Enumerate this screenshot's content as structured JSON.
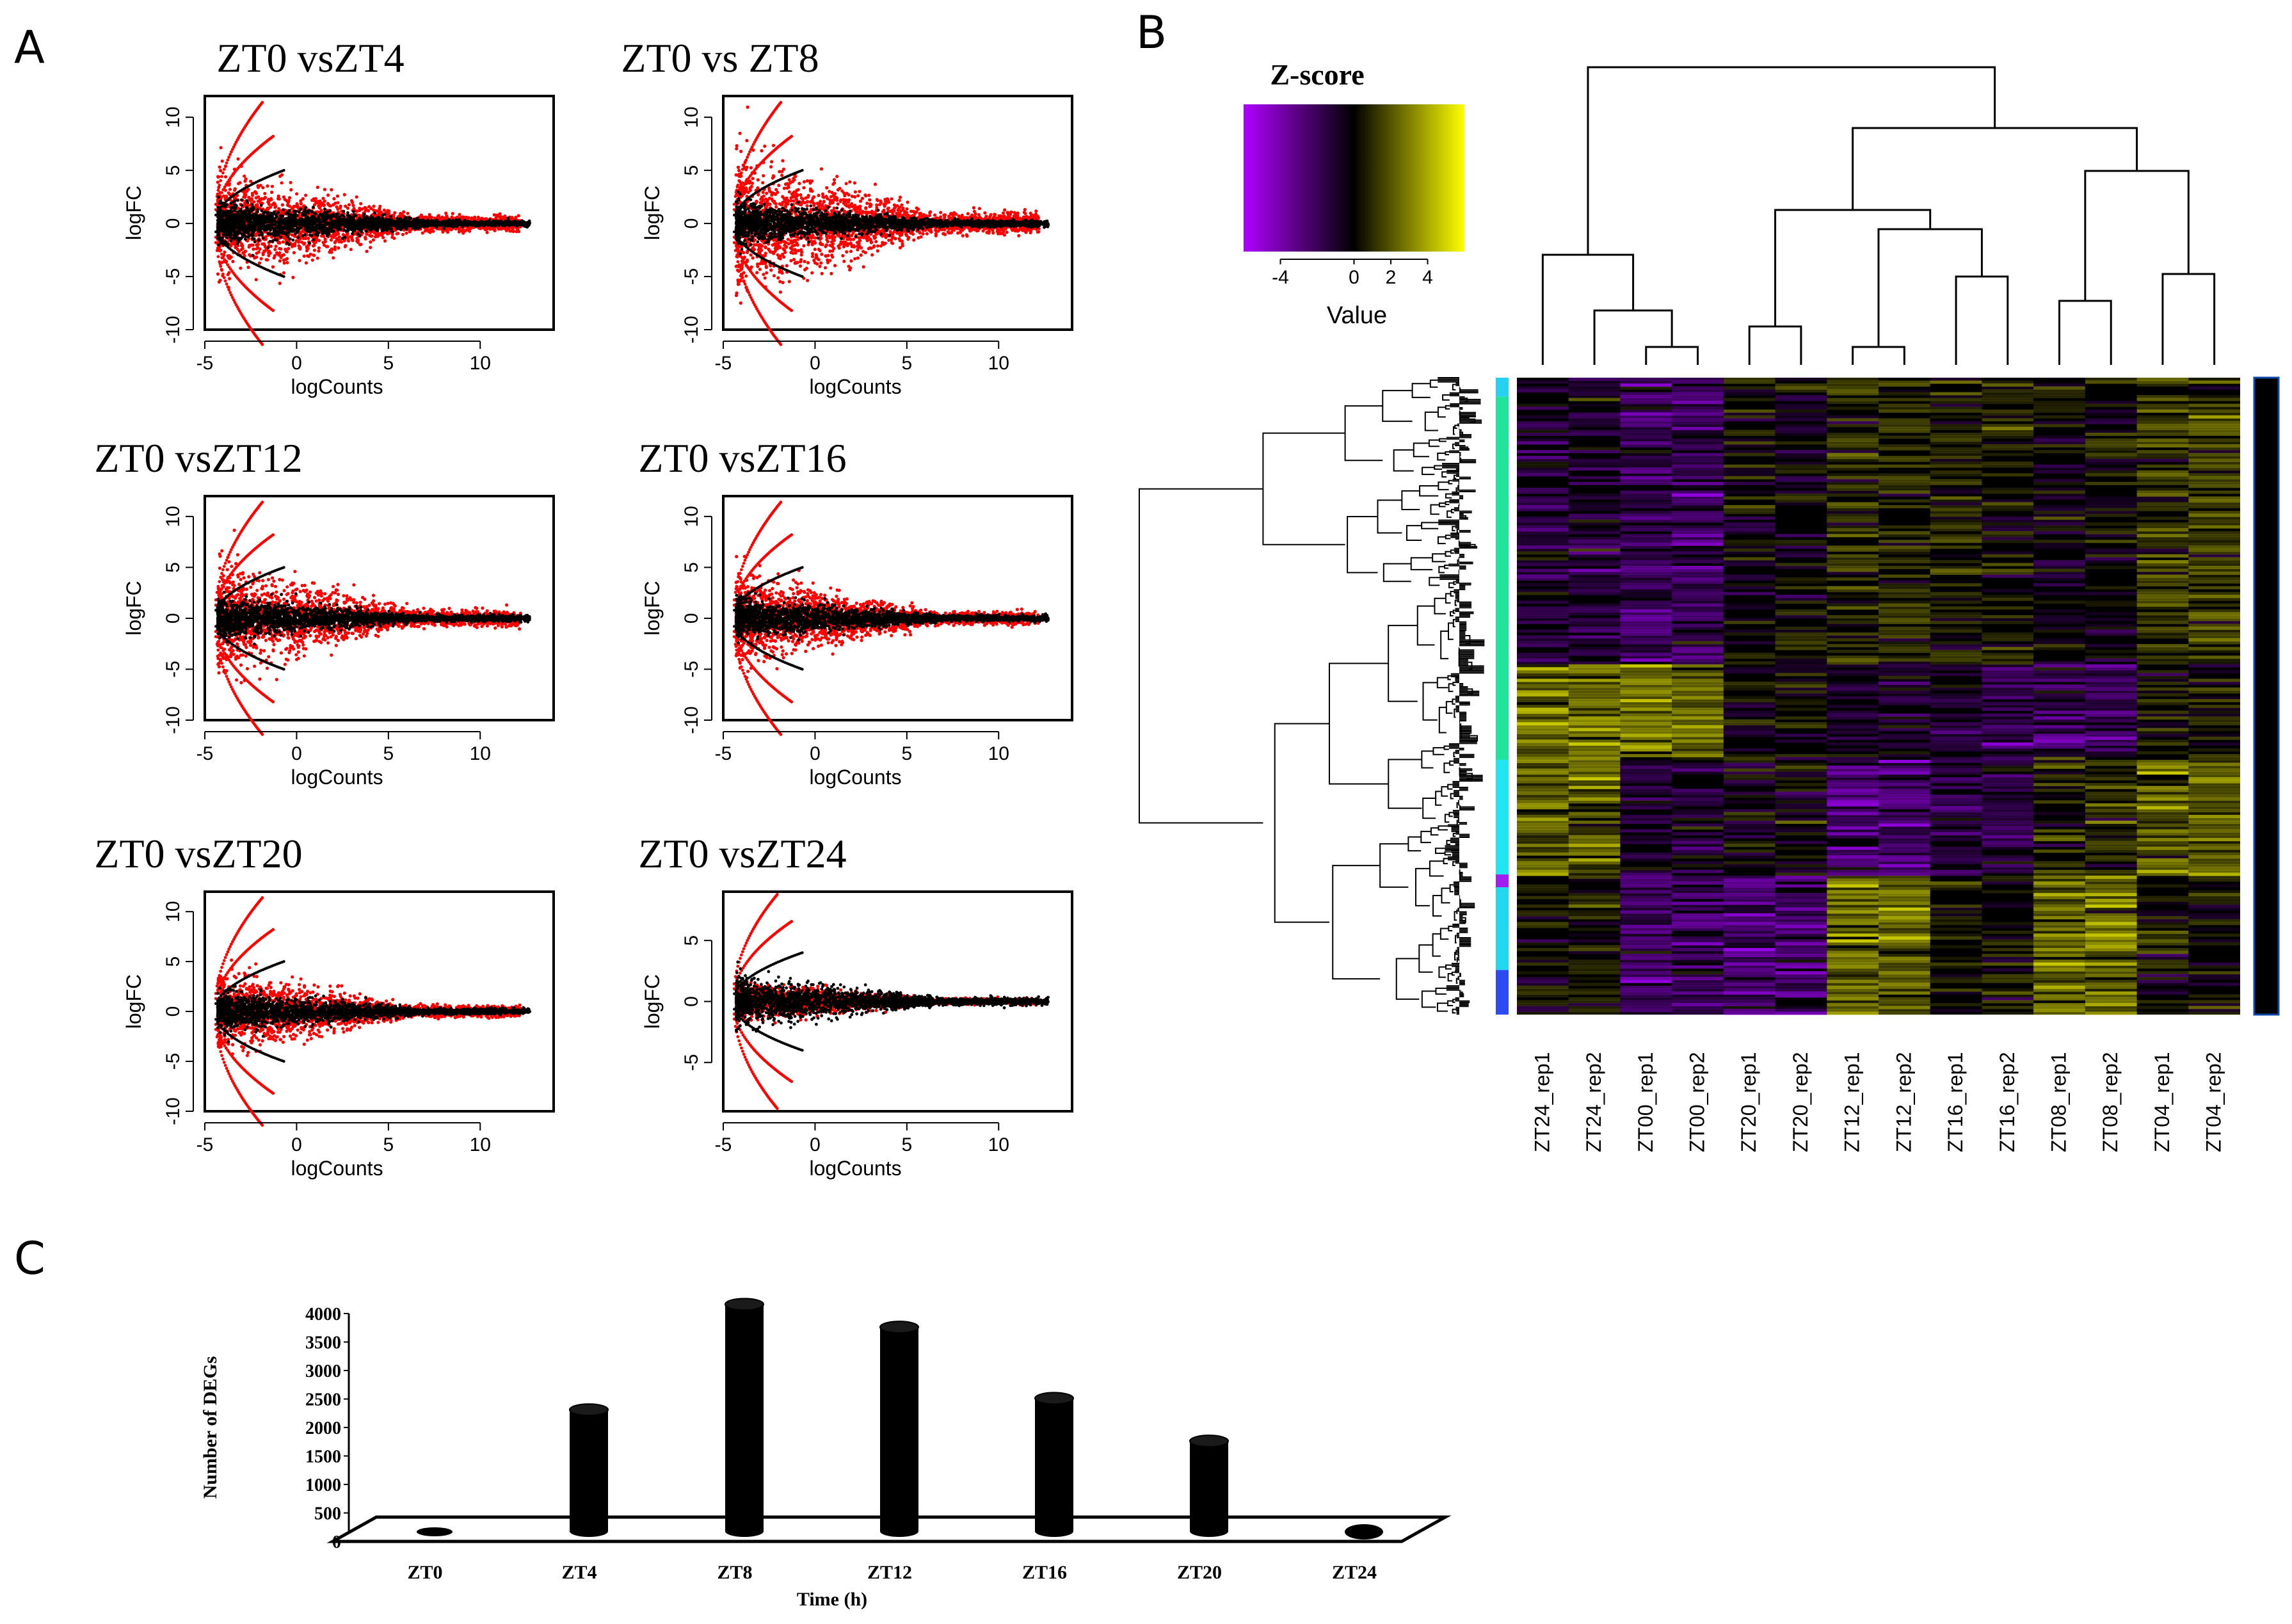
{
  "panels": {
    "a": "A",
    "b": "B",
    "c": "C"
  },
  "colors": {
    "up": "#ff0000",
    "ns": "#000000",
    "low": "#b000ff",
    "high": "#ffff00"
  },
  "chart_data": [
    {
      "type": "scatter",
      "id": "ma1",
      "title": "ZT0 vsZT4",
      "xlabel": "logCounts",
      "ylabel": "logFC",
      "xlim": [
        -5,
        14
      ],
      "ylim": [
        -10,
        12
      ],
      "xticks": [
        -5,
        0,
        5,
        10
      ],
      "yticks": [
        -10,
        -5,
        0,
        5,
        10
      ],
      "spread": 1.0
    },
    {
      "type": "scatter",
      "id": "ma2",
      "title": "ZT0 vs ZT8",
      "xlabel": "logCounts",
      "ylabel": "logFC",
      "xlim": [
        -5,
        14
      ],
      "ylim": [
        -10,
        12
      ],
      "xticks": [
        -5,
        0,
        5,
        10
      ],
      "yticks": [
        -10,
        -5,
        0,
        5,
        10
      ],
      "spread": 1.35
    },
    {
      "type": "scatter",
      "id": "ma3",
      "title": "ZT0 vsZT12",
      "xlabel": "logCounts",
      "ylabel": "logFC",
      "xlim": [
        -5,
        14
      ],
      "ylim": [
        -10,
        12
      ],
      "xticks": [
        -5,
        0,
        5,
        10
      ],
      "yticks": [
        -10,
        -5,
        0,
        5,
        10
      ],
      "spread": 1.05
    },
    {
      "type": "scatter",
      "id": "ma4",
      "title": "ZT0 vsZT16",
      "xlabel": "logCounts",
      "ylabel": "logFC",
      "xlim": [
        -5,
        14
      ],
      "ylim": [
        -10,
        12
      ],
      "xticks": [
        -5,
        0,
        5,
        10
      ],
      "yticks": [
        -10,
        -5,
        0,
        5,
        10
      ],
      "spread": 0.85
    },
    {
      "type": "scatter",
      "id": "ma5",
      "title": "ZT0 vsZT20",
      "xlabel": "logCounts",
      "ylabel": "logFC",
      "xlim": [
        -5,
        14
      ],
      "ylim": [
        -10,
        12
      ],
      "xticks": [
        -5,
        0,
        5,
        10
      ],
      "yticks": [
        -10,
        -5,
        0,
        5,
        10
      ],
      "spread": 0.75
    },
    {
      "type": "scatter",
      "id": "ma6",
      "title": "ZT0 vsZT24",
      "xlabel": "logCounts",
      "ylabel": "logFC",
      "xlim": [
        -5,
        14
      ],
      "ylim": [
        -9,
        9
      ],
      "xticks": [
        -5,
        0,
        5,
        10
      ],
      "yticks": [
        -5,
        0,
        5
      ],
      "spread": 0.3
    },
    {
      "type": "heatmap",
      "id": "heatmap",
      "key_title": "Z-score",
      "key_label": "Value",
      "key_ticks": [
        -4,
        0,
        2,
        4
      ],
      "key_range": [
        -6,
        6
      ],
      "columns": [
        "ZT24_rep1",
        "ZT24_rep2",
        "ZT00_rep1",
        "ZT00_rep2",
        "ZT20_rep1",
        "ZT20_rep2",
        "ZT12_rep1",
        "ZT12_rep2",
        "ZT16_rep1",
        "ZT16_rep2",
        "ZT08_rep1",
        "ZT08_rep2",
        "ZT04_rep1",
        "ZT04_rep2"
      ]
    },
    {
      "type": "bar",
      "id": "bars",
      "title": "",
      "xlabel": "Time (h)",
      "ylabel": "Number of  DEGs",
      "categories": [
        "ZT0",
        "ZT4",
        "ZT8",
        "ZT12",
        "ZT16",
        "ZT20",
        "ZT24"
      ],
      "values": [
        20,
        2200,
        4050,
        3650,
        2400,
        1650,
        120
      ],
      "ylim": [
        0,
        4000
      ],
      "yticks": [
        0,
        500,
        1000,
        1500,
        2000,
        2500,
        3000,
        3500,
        4000
      ]
    }
  ]
}
